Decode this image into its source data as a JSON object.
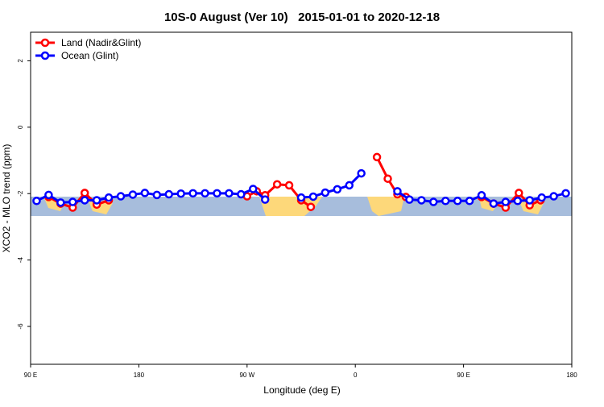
{
  "chart_data": {
    "type": "line",
    "title": "10S-0 August (Ver 10)   2015-01-01 to 2020-12-18",
    "xlabel": "Longitude (deg E)",
    "ylabel": "XCO2 - MLO trend (ppm)",
    "xlim": [
      90,
      540
    ],
    "ylim": [
      -7.14,
      2.86
    ],
    "xticks": [
      {
        "value": 90,
        "label": "90 E"
      },
      180,
      {
        "value": 270,
        "label": "90 W"
      },
      {
        "value": 360,
        "label": "0"
      },
      {
        "value": 450,
        "label": "90 E"
      },
      {
        "value": 540,
        "label": "180"
      }
    ],
    "yticks": [
      -6,
      -4,
      -2,
      0,
      2
    ],
    "legend": "top-left",
    "series": [
      {
        "name": "Land (Nadir&Glint)",
        "color": "#ff0000",
        "x": [
          105,
          115,
          125,
          135,
          145,
          155,
          210,
          270,
          278,
          285,
          295,
          305,
          315,
          323,
          350,
          378,
          387,
          395,
          402,
          430,
          465,
          475,
          485,
          496,
          505,
          514
        ],
        "values": [
          -2.1,
          -2.3,
          -2.42,
          -1.98,
          -2.33,
          -2.2,
          null,
          -2.08,
          -1.93,
          -2.05,
          -1.72,
          -1.75,
          -2.2,
          -2.4,
          null,
          -0.9,
          -1.55,
          -2.02,
          -2.1,
          null,
          -2.1,
          -2.3,
          -2.42,
          -1.98,
          -2.35,
          -2.2
        ]
      },
      {
        "name": "Ocean (Glint)",
        "color": "#0000ff",
        "x": [
          95,
          105,
          115,
          125,
          135,
          145,
          155,
          165,
          175,
          185,
          195,
          205,
          215,
          225,
          235,
          245,
          255,
          265,
          275,
          285,
          305,
          315,
          325,
          335,
          345,
          355,
          365,
          380,
          395,
          405,
          415,
          425,
          435,
          445,
          455,
          465,
          475,
          485,
          495,
          505,
          515,
          525,
          535
        ],
        "values": [
          -2.22,
          -2.04,
          -2.27,
          -2.25,
          -2.2,
          -2.2,
          -2.12,
          -2.08,
          -2.03,
          -1.98,
          -2.04,
          -2.02,
          -2.0,
          -1.99,
          -1.99,
          -1.99,
          -1.99,
          -2.02,
          -1.86,
          -2.18,
          null,
          -2.12,
          -2.09,
          -1.97,
          -1.87,
          -1.75,
          -1.39,
          null,
          -1.93,
          -2.18,
          -2.2,
          -2.25,
          -2.22,
          -2.22,
          -2.22,
          -2.05,
          -2.3,
          -2.25,
          -2.22,
          -2.2,
          -2.12,
          -2.08,
          -1.99
        ]
      }
    ]
  }
}
